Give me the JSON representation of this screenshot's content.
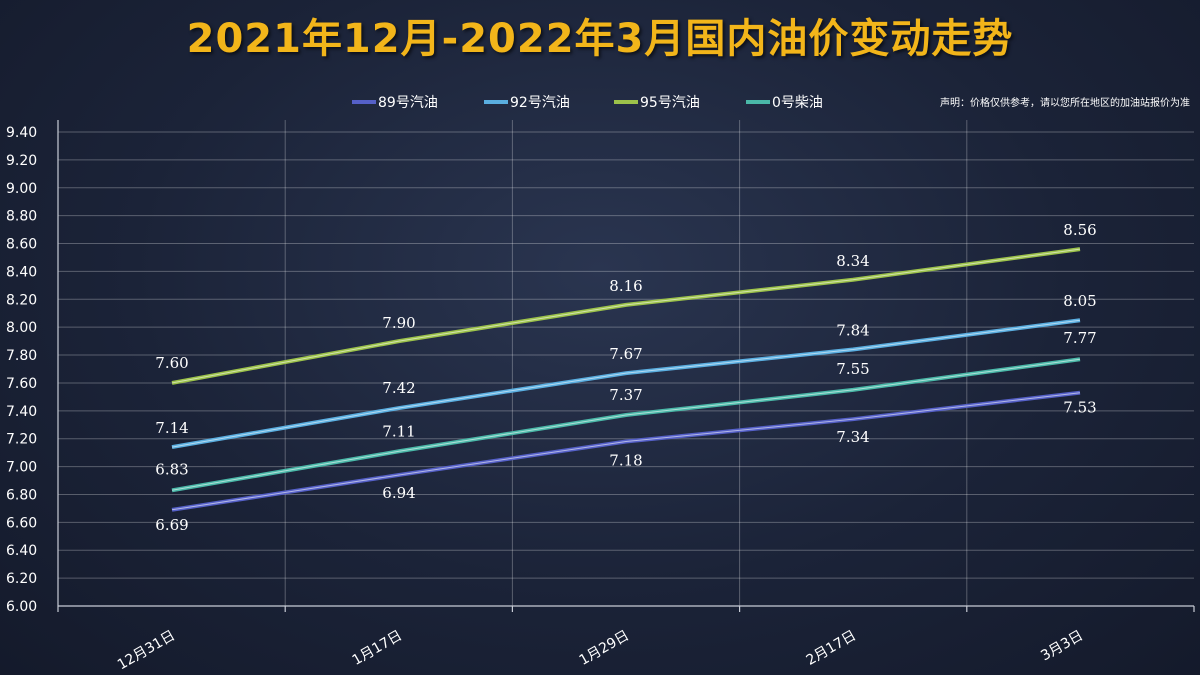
{
  "title": "2021年12月-2022年3月国内油价变动走势",
  "chart_data": {
    "type": "line",
    "title": "2021年12月-2022年3月国内油价变动走势",
    "note": "声明：价格仅供参考，请以您所在地区的加油站报价为准",
    "categories": [
      "12月31日",
      "1月17日",
      "1月29日",
      "2月17日",
      "3月3日"
    ],
    "y_ticks": [
      "6.00",
      "6.20",
      "6.40",
      "6.60",
      "6.80",
      "7.00",
      "7.20",
      "7.40",
      "7.60",
      "7.80",
      "8.00",
      "8.20",
      "8.40",
      "8.60",
      "8.80",
      "9.00",
      "9.20",
      "9.40"
    ],
    "ylim": [
      6.0,
      9.4
    ],
    "grid": true,
    "legend_position": "top",
    "series": [
      {
        "name": "89号汽油",
        "color": "#5560c8",
        "values": [
          6.69,
          6.94,
          7.18,
          7.34,
          7.53
        ],
        "labels": [
          "6.69",
          "6.94",
          "7.18",
          "7.34",
          "7.53"
        ]
      },
      {
        "name": "92号汽油",
        "color": "#5aaee0",
        "values": [
          7.14,
          7.42,
          7.67,
          7.84,
          8.05
        ],
        "labels": [
          "7.14",
          "7.42",
          "7.67",
          "7.84",
          "8.05"
        ]
      },
      {
        "name": "95号汽油",
        "color": "#9cc24a",
        "values": [
          7.6,
          7.9,
          8.16,
          8.34,
          8.56
        ],
        "labels": [
          "7.60",
          "7.90",
          "8.16",
          "8.34",
          "8.56"
        ]
      },
      {
        "name": "0号柴油",
        "color": "#4ab8a8",
        "values": [
          6.83,
          7.11,
          7.37,
          7.55,
          7.77
        ],
        "labels": [
          "6.83",
          "7.11",
          "7.37",
          "7.55",
          "7.77"
        ]
      }
    ]
  }
}
